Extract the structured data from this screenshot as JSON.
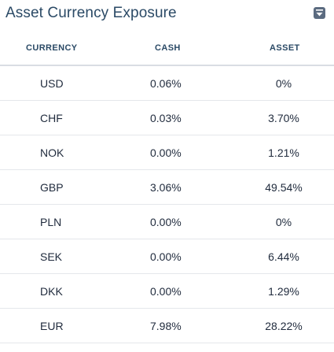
{
  "widget": {
    "title": "Asset Currency Exposure",
    "collapse_icon": "collapse-icon"
  },
  "table": {
    "columns": [
      "CURRENCY",
      "CASH",
      "ASSET"
    ],
    "rows": [
      {
        "currency": "USD",
        "cash": "0.06%",
        "asset": "0%"
      },
      {
        "currency": "CHF",
        "cash": "0.03%",
        "asset": "3.70%"
      },
      {
        "currency": "NOK",
        "cash": "0.00%",
        "asset": "1.21%"
      },
      {
        "currency": "GBP",
        "cash": "3.06%",
        "asset": "49.54%"
      },
      {
        "currency": "PLN",
        "cash": "0.00%",
        "asset": "0%"
      },
      {
        "currency": "SEK",
        "cash": "0.00%",
        "asset": "6.44%"
      },
      {
        "currency": "DKK",
        "cash": "0.00%",
        "asset": "1.29%"
      },
      {
        "currency": "EUR",
        "cash": "7.98%",
        "asset": "28.22%"
      }
    ]
  },
  "colors": {
    "title": "#2b4a66",
    "header_text": "#2b4a66",
    "cell_text": "#1f2a3c",
    "button_bg": "#5b6b80"
  }
}
